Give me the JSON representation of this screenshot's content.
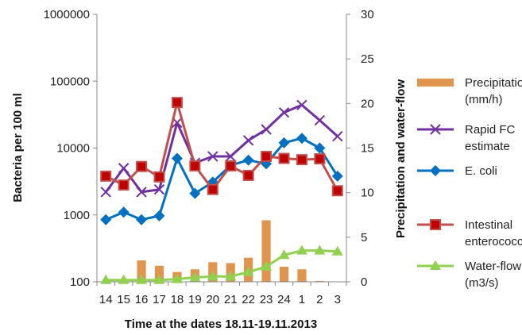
{
  "chart_data": {
    "type": "line",
    "categories": [
      "14",
      "15",
      "16",
      "17",
      "18",
      "19",
      "20",
      "21",
      "22",
      "23",
      "24",
      "1",
      "2",
      "3"
    ],
    "xlabel": "Time at the dates 18.11-19.11.2013",
    "ylabel": "Bacteria per 100 ml",
    "y2label": "Precipitation and water-flow",
    "y_scale": "log",
    "ylim": [
      100,
      1000000
    ],
    "y2lim": [
      0,
      30
    ],
    "y_ticks": [
      "1000000",
      "100000",
      "10000",
      "1000",
      "100"
    ],
    "y2_ticks": [
      "30",
      "25",
      "20",
      "15",
      "10",
      "5",
      "0"
    ],
    "grid": false,
    "legend_position": "right",
    "series": [
      {
        "name": "Precipitation (mm/h)",
        "legend_lines": [
          "Precipitation",
          "(mm/h)"
        ],
        "type": "bar",
        "axis": "secondary",
        "color": "#E0954F",
        "values": [
          0,
          0,
          2.4,
          1.8,
          1.1,
          1.4,
          2.2,
          2.1,
          2.7,
          6.9,
          1.7,
          1.4,
          0.1,
          0
        ]
      },
      {
        "name": "Rapid FC estimate",
        "legend_lines": [
          "Rapid FC",
          "estimate"
        ],
        "type": "line",
        "axis": "primary",
        "color": "#7030A0",
        "marker": "x",
        "values": [
          2200,
          5000,
          2200,
          2400,
          24000,
          6000,
          7500,
          7500,
          13000,
          19000,
          34000,
          44000,
          26000,
          15000
        ]
      },
      {
        "name": "E. coli",
        "legend_lines": [
          "E. coli"
        ],
        "type": "line",
        "axis": "primary",
        "color": "#0070C0",
        "marker": "diamond",
        "values": [
          850,
          1100,
          850,
          970,
          7000,
          2100,
          3100,
          5500,
          6600,
          5800,
          12000,
          14000,
          10000,
          3800
        ]
      },
      {
        "name": "Intestinal enterococci",
        "legend_lines": [
          "Intestinal",
          "enterococci"
        ],
        "type": "line",
        "axis": "primary",
        "color": "#C0504D",
        "marker": "square",
        "values": [
          3800,
          2800,
          5300,
          3700,
          48000,
          5400,
          2400,
          5400,
          3900,
          7500,
          7000,
          6700,
          6900,
          2300
        ]
      },
      {
        "name": "Water-flow (m3/s)",
        "legend_lines": [
          "Water-flow",
          "(m3/s)"
        ],
        "type": "line",
        "axis": "secondary",
        "color": "#92D050",
        "marker": "triangle",
        "values": [
          0.2,
          0.2,
          0.2,
          0.2,
          0.3,
          0.5,
          0.6,
          0.6,
          1.1,
          1.7,
          3.0,
          3.5,
          3.5,
          3.4
        ]
      }
    ]
  }
}
